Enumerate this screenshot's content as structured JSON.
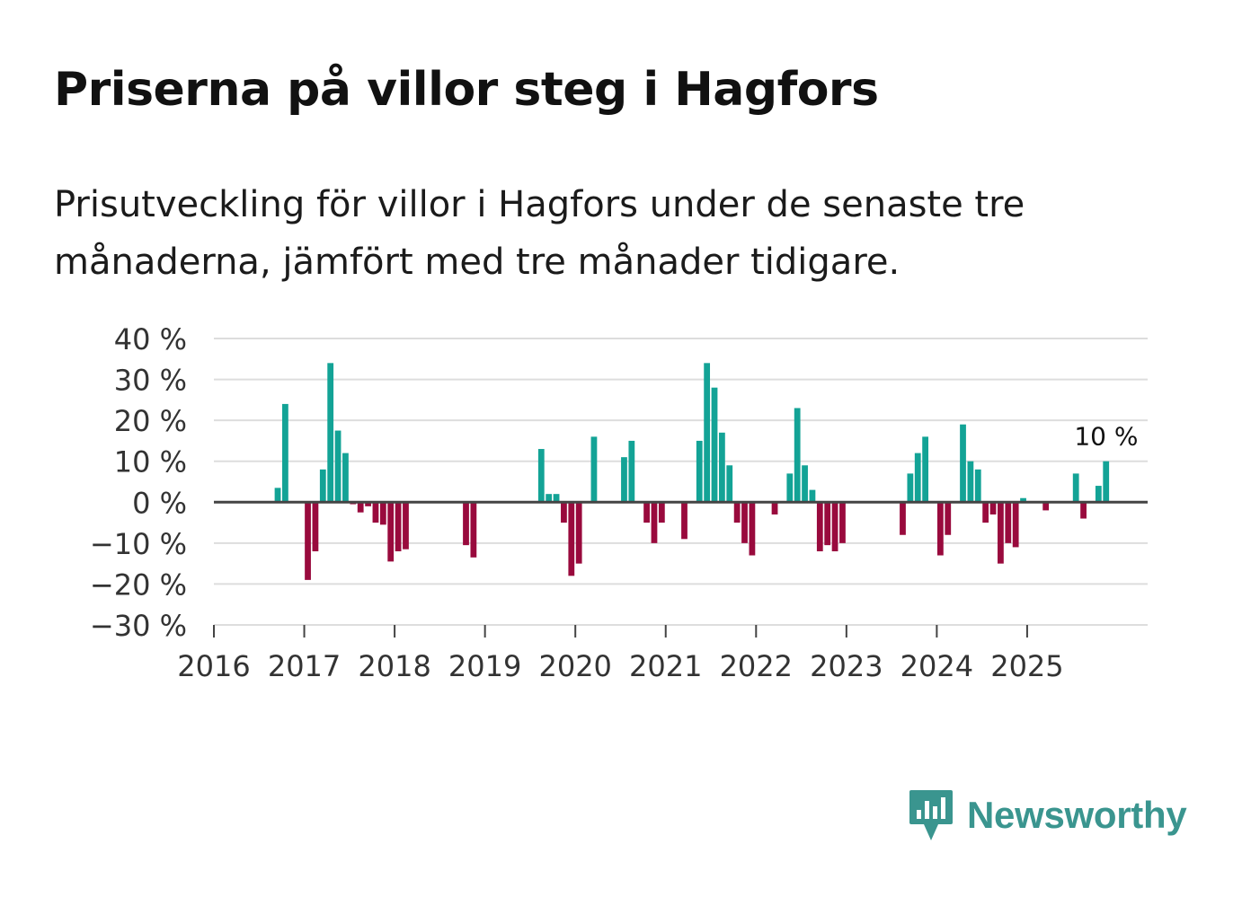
{
  "title": "Priserna på villor steg i Hagfors",
  "subtitle": "Prisutveckling för villor i Hagfors under de senaste tre månaderna, jämfört med tre månader tidigare.",
  "brand": "Newsworthy",
  "colors": {
    "positive": "#13a396",
    "negative": "#990a3d",
    "grid": "#dddddd",
    "axis": "#444444",
    "brand": "#3a958f"
  },
  "chart_data": {
    "type": "bar",
    "title": "Priserna på villor steg i Hagfors",
    "xlabel": "",
    "ylabel": "",
    "ylim": [
      -30,
      40
    ],
    "yticks": [
      40,
      30,
      20,
      10,
      0,
      -10,
      -20,
      -30
    ],
    "ytick_labels": [
      "40 %",
      "30 %",
      "20 %",
      "10 %",
      "0 %",
      "−10 %",
      "−20 %",
      "−30 %"
    ],
    "xticks": [
      "2016",
      "2017",
      "2018",
      "2019",
      "2020",
      "2021",
      "2022",
      "2023",
      "2024",
      "2025"
    ],
    "start": "2016-01",
    "end": "2026-05",
    "grid": true,
    "annotation": {
      "month": "2025-11",
      "label": "10 %"
    },
    "series": [
      {
        "name": "Prisutveckling",
        "points": [
          [
            "2016-09",
            3.5
          ],
          [
            "2016-10",
            24
          ],
          [
            "2017-01",
            -19
          ],
          [
            "2017-02",
            -12
          ],
          [
            "2017-03",
            8
          ],
          [
            "2017-04",
            34
          ],
          [
            "2017-05",
            17.5
          ],
          [
            "2017-06",
            12
          ],
          [
            "2017-07",
            -0.5
          ],
          [
            "2017-08",
            -2.5
          ],
          [
            "2017-09",
            -1
          ],
          [
            "2017-10",
            -5
          ],
          [
            "2017-11",
            -5.5
          ],
          [
            "2017-12",
            -14.5
          ],
          [
            "2018-01",
            -12
          ],
          [
            "2018-02",
            -11.5
          ],
          [
            "2018-10",
            -10.5
          ],
          [
            "2018-11",
            -13.5
          ],
          [
            "2019-08",
            13
          ],
          [
            "2019-09",
            2
          ],
          [
            "2019-10",
            2
          ],
          [
            "2019-11",
            -5
          ],
          [
            "2019-12",
            -18
          ],
          [
            "2020-01",
            -15
          ],
          [
            "2020-03",
            16
          ],
          [
            "2020-07",
            11
          ],
          [
            "2020-08",
            15
          ],
          [
            "2020-10",
            -5
          ],
          [
            "2020-11",
            -10
          ],
          [
            "2020-12",
            -5
          ],
          [
            "2021-03",
            -9
          ],
          [
            "2021-05",
            15
          ],
          [
            "2021-06",
            34
          ],
          [
            "2021-07",
            28
          ],
          [
            "2021-08",
            17
          ],
          [
            "2021-09",
            9
          ],
          [
            "2021-10",
            -5
          ],
          [
            "2021-11",
            -10
          ],
          [
            "2021-12",
            -13
          ],
          [
            "2022-03",
            -3
          ],
          [
            "2022-05",
            7
          ],
          [
            "2022-06",
            23
          ],
          [
            "2022-07",
            9
          ],
          [
            "2022-08",
            3
          ],
          [
            "2022-09",
            -12
          ],
          [
            "2022-10",
            -10.5
          ],
          [
            "2022-11",
            -12
          ],
          [
            "2022-12",
            -10
          ],
          [
            "2023-08",
            -8
          ],
          [
            "2023-09",
            7
          ],
          [
            "2023-10",
            12
          ],
          [
            "2023-11",
            16
          ],
          [
            "2024-01",
            -13
          ],
          [
            "2024-02",
            -8
          ],
          [
            "2024-04",
            19
          ],
          [
            "2024-05",
            10
          ],
          [
            "2024-06",
            8
          ],
          [
            "2024-07",
            -5
          ],
          [
            "2024-08",
            -3
          ],
          [
            "2024-09",
            -15
          ],
          [
            "2024-10",
            -10
          ],
          [
            "2024-11",
            -11
          ],
          [
            "2024-12",
            1
          ],
          [
            "2025-03",
            -2
          ],
          [
            "2025-07",
            7
          ],
          [
            "2025-08",
            -4
          ],
          [
            "2025-10",
            4
          ],
          [
            "2025-11",
            10
          ]
        ]
      }
    ]
  }
}
